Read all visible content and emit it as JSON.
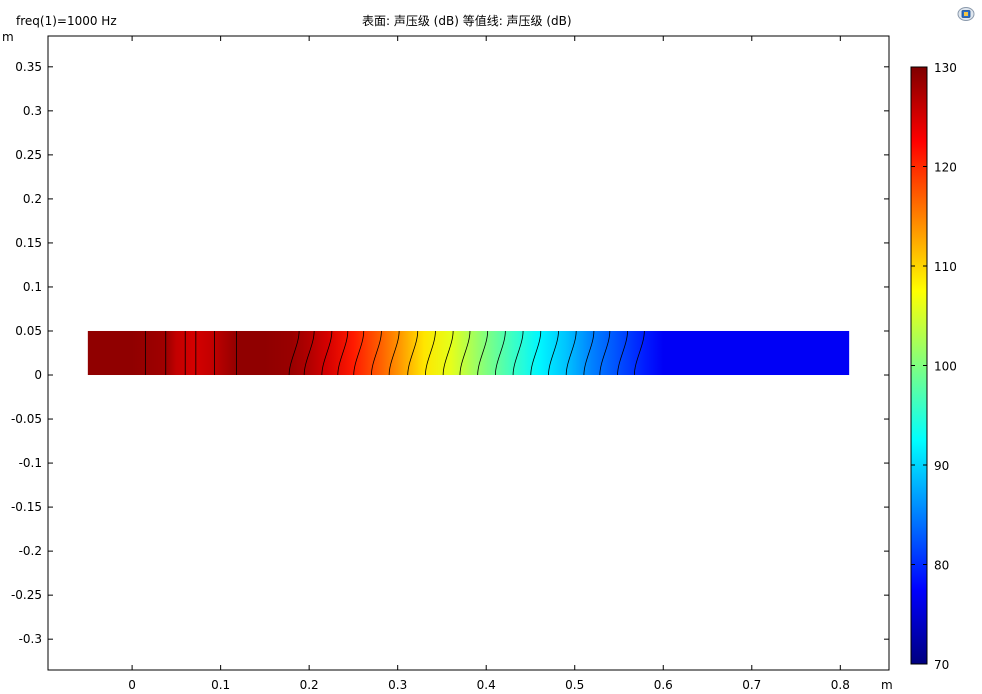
{
  "header": {
    "param_label": "freq(1)=1000 Hz",
    "plot_title": "表面: 声压级 (dB)  等值线: 声压级 (dB)"
  },
  "toolbar": {
    "icon": "plot-window-icon"
  },
  "chart_data": {
    "type": "heatmap",
    "title": "表面: 声压级 (dB)  等值线: 声压级 (dB)",
    "parameter": "freq(1)=1000 Hz",
    "xlabel": "m",
    "ylabel": "m",
    "xlim": [
      -0.095,
      0.855
    ],
    "ylim": [
      -0.335,
      0.385
    ],
    "x_ticks": [
      0,
      0.1,
      0.2,
      0.3,
      0.4,
      0.5,
      0.6,
      0.7,
      0.8
    ],
    "x_tick_labels": [
      "0",
      "0.1",
      "0.2",
      "0.3",
      "0.4",
      "0.5",
      "0.6",
      "0.7",
      "0.8"
    ],
    "y_ticks": [
      0.35,
      0.3,
      0.25,
      0.2,
      0.15,
      0.1,
      0.05,
      0,
      -0.05,
      -0.1,
      -0.15,
      -0.2,
      -0.25,
      -0.3
    ],
    "y_tick_labels": [
      "0.35",
      "0.3",
      "0.25",
      "0.2",
      "0.15",
      "0.1",
      "0.05",
      "0",
      "-0.05",
      "-0.1",
      "-0.15",
      "-0.2",
      "-0.25",
      "-0.3"
    ],
    "domain": {
      "x_min": -0.05,
      "x_max": 0.81,
      "y_min": 0,
      "y_max": 0.05
    },
    "surface_profile": {
      "x": [
        -0.05,
        0.0,
        0.04,
        0.05,
        0.07,
        0.09,
        0.1,
        0.12,
        0.15,
        0.18,
        0.2,
        0.22,
        0.25,
        0.28,
        0.3,
        0.33,
        0.36,
        0.38,
        0.4,
        0.43,
        0.46,
        0.49,
        0.52,
        0.55,
        0.58,
        0.6,
        0.65,
        0.81
      ],
      "spl_db": [
        129,
        129,
        128,
        126,
        125,
        126,
        127,
        129,
        129,
        128.5,
        127,
        125,
        121,
        117,
        114,
        109,
        106,
        103,
        100,
        96,
        92,
        89,
        85,
        82,
        79,
        77,
        77,
        77
      ]
    },
    "contour_lines_x": [
      0.015,
      0.038,
      0.06,
      0.072,
      0.093,
      0.118,
      0.183,
      0.2,
      0.22,
      0.238,
      0.256,
      0.276,
      0.296,
      0.317,
      0.337,
      0.357,
      0.376,
      0.396,
      0.416,
      0.436,
      0.456,
      0.476,
      0.496,
      0.516,
      0.534,
      0.554,
      0.573
    ],
    "colorbar": {
      "min": 70,
      "max": 130,
      "ticks": [
        130,
        120,
        110,
        100,
        90,
        80,
        70
      ],
      "colormap": [
        "#7f0000",
        "#ff0000",
        "#ff8000",
        "#ffff00",
        "#80ff80",
        "#00ffff",
        "#0080ff",
        "#0000ff",
        "#00007f"
      ]
    },
    "grid": false
  }
}
